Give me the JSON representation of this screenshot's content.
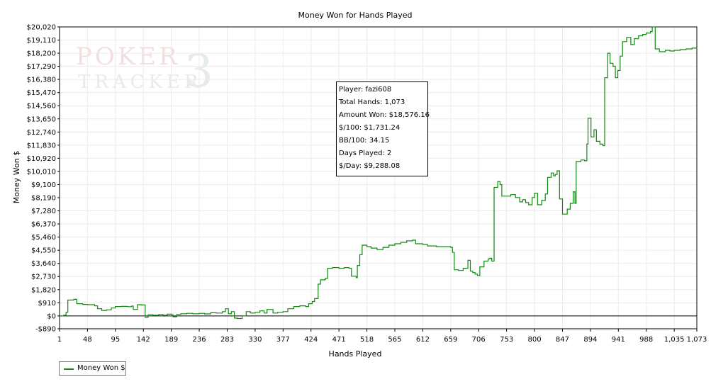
{
  "chart_data": {
    "type": "line",
    "title": "Money Won for Hands Played",
    "xlabel": "Hands Played",
    "ylabel": "Money Won $",
    "xlim": [
      1,
      1073
    ],
    "ylim": [
      -890,
      20020
    ],
    "x_ticks": [
      1,
      48,
      95,
      142,
      189,
      236,
      283,
      330,
      377,
      424,
      471,
      518,
      565,
      612,
      659,
      706,
      753,
      800,
      847,
      894,
      941,
      988,
      1035,
      1073
    ],
    "x_tick_labels": [
      "1",
      "48",
      "95",
      "142",
      "189",
      "236",
      "283",
      "330",
      "377",
      "424",
      "471",
      "518",
      "565",
      "612",
      "659",
      "706",
      "753",
      "800",
      "847",
      "894",
      "941",
      "988",
      "1,035",
      "1,073"
    ],
    "y_ticks": [
      -890,
      0,
      910,
      1820,
      2730,
      3640,
      4550,
      5460,
      6370,
      7280,
      8190,
      9100,
      10010,
      10920,
      11830,
      12740,
      13650,
      14560,
      15470,
      16380,
      17290,
      18200,
      19110,
      20020
    ],
    "y_tick_labels": [
      "-$890",
      "$0",
      "$910",
      "$1,820",
      "$2,730",
      "$3,640",
      "$4,550",
      "$5,460",
      "$6,370",
      "$7,280",
      "$8,190",
      "$9,100",
      "$10,010",
      "$10,920",
      "$11,830",
      "$12,740",
      "$13,650",
      "$14,560",
      "$15,470",
      "$16,380",
      "$17,290",
      "$18,200",
      "$19,110",
      "$20,020"
    ],
    "grid": true,
    "legend_position": "bottom-left",
    "color": "#118811",
    "series": [
      {
        "name": "Money Won $",
        "points": [
          [
            1,
            0
          ],
          [
            8,
            50
          ],
          [
            12,
            250
          ],
          [
            15,
            1100
          ],
          [
            25,
            1150
          ],
          [
            30,
            850
          ],
          [
            40,
            800
          ],
          [
            48,
            780
          ],
          [
            60,
            700
          ],
          [
            65,
            500
          ],
          [
            72,
            380
          ],
          [
            80,
            420
          ],
          [
            88,
            550
          ],
          [
            95,
            650
          ],
          [
            105,
            660
          ],
          [
            115,
            640
          ],
          [
            122,
            680
          ],
          [
            125,
            450
          ],
          [
            132,
            780
          ],
          [
            138,
            760
          ],
          [
            142,
            760
          ],
          [
            145,
            -100
          ],
          [
            150,
            80
          ],
          [
            158,
            50
          ],
          [
            168,
            100
          ],
          [
            175,
            50
          ],
          [
            182,
            120
          ],
          [
            189,
            80
          ],
          [
            192,
            -60
          ],
          [
            198,
            100
          ],
          [
            205,
            150
          ],
          [
            215,
            180
          ],
          [
            225,
            150
          ],
          [
            236,
            180
          ],
          [
            245,
            140
          ],
          [
            255,
            220
          ],
          [
            265,
            200
          ],
          [
            275,
            300
          ],
          [
            280,
            500
          ],
          [
            285,
            150
          ],
          [
            290,
            300
          ],
          [
            295,
            -150
          ],
          [
            300,
            -180
          ],
          [
            308,
            0
          ],
          [
            315,
            300
          ],
          [
            322,
            200
          ],
          [
            330,
            250
          ],
          [
            338,
            350
          ],
          [
            345,
            200
          ],
          [
            350,
            450
          ],
          [
            360,
            200
          ],
          [
            368,
            250
          ],
          [
            377,
            300
          ],
          [
            385,
            500
          ],
          [
            395,
            650
          ],
          [
            405,
            700
          ],
          [
            415,
            650
          ],
          [
            420,
            850
          ],
          [
            426,
            1000
          ],
          [
            430,
            1200
          ],
          [
            436,
            2200
          ],
          [
            440,
            2500
          ],
          [
            448,
            2600
          ],
          [
            452,
            3300
          ],
          [
            460,
            3350
          ],
          [
            471,
            3300
          ],
          [
            480,
            3350
          ],
          [
            488,
            3300
          ],
          [
            492,
            2750
          ],
          [
            500,
            2650
          ],
          [
            502,
            3500
          ],
          [
            506,
            4250
          ],
          [
            510,
            4900
          ],
          [
            518,
            4800
          ],
          [
            525,
            4700
          ],
          [
            535,
            4600
          ],
          [
            545,
            4750
          ],
          [
            555,
            4900
          ],
          [
            565,
            5000
          ],
          [
            575,
            5100
          ],
          [
            585,
            5200
          ],
          [
            595,
            5250
          ],
          [
            600,
            5000
          ],
          [
            612,
            4950
          ],
          [
            620,
            4850
          ],
          [
            635,
            4800
          ],
          [
            650,
            4800
          ],
          [
            659,
            4750
          ],
          [
            662,
            4400
          ],
          [
            665,
            3200
          ],
          [
            672,
            3150
          ],
          [
            680,
            3300
          ],
          [
            688,
            3850
          ],
          [
            692,
            3100
          ],
          [
            696,
            3000
          ],
          [
            700,
            2900
          ],
          [
            704,
            2800
          ],
          [
            708,
            3400
          ],
          [
            715,
            3800
          ],
          [
            722,
            3950
          ],
          [
            725,
            4000
          ],
          [
            728,
            3800
          ],
          [
            732,
            8900
          ],
          [
            738,
            9300
          ],
          [
            742,
            9100
          ],
          [
            745,
            8300
          ],
          [
            752,
            8300
          ],
          [
            760,
            8400
          ],
          [
            768,
            8200
          ],
          [
            775,
            7900
          ],
          [
            780,
            8050
          ],
          [
            785,
            7850
          ],
          [
            790,
            7700
          ],
          [
            796,
            8200
          ],
          [
            800,
            8500
          ],
          [
            805,
            7700
          ],
          [
            812,
            8000
          ],
          [
            818,
            8450
          ],
          [
            822,
            9600
          ],
          [
            828,
            9900
          ],
          [
            832,
            9700
          ],
          [
            835,
            9800
          ],
          [
            838,
            10050
          ],
          [
            842,
            8100
          ],
          [
            847,
            7050
          ],
          [
            855,
            7400
          ],
          [
            860,
            7800
          ],
          [
            865,
            8600
          ],
          [
            868,
            7800
          ],
          [
            870,
            10700
          ],
          [
            878,
            10800
          ],
          [
            884,
            10750
          ],
          [
            888,
            11900
          ],
          [
            890,
            13700
          ],
          [
            895,
            12400
          ],
          [
            900,
            12900
          ],
          [
            904,
            12100
          ],
          [
            910,
            11900
          ],
          [
            915,
            11800
          ],
          [
            918,
            16500
          ],
          [
            923,
            18200
          ],
          [
            927,
            17500
          ],
          [
            932,
            17300
          ],
          [
            936,
            16500
          ],
          [
            940,
            17000
          ],
          [
            944,
            18000
          ],
          [
            948,
            19000
          ],
          [
            955,
            19300
          ],
          [
            962,
            18800
          ],
          [
            968,
            19200
          ],
          [
            975,
            19400
          ],
          [
            982,
            19500
          ],
          [
            988,
            19600
          ],
          [
            995,
            19700
          ],
          [
            998,
            20020
          ],
          [
            1003,
            18500
          ],
          [
            1010,
            18300
          ],
          [
            1020,
            18400
          ],
          [
            1028,
            18350
          ],
          [
            1035,
            18400
          ],
          [
            1045,
            18450
          ],
          [
            1055,
            18500
          ],
          [
            1065,
            18550
          ],
          [
            1073,
            18576.16
          ]
        ]
      }
    ]
  },
  "stats": {
    "player": "Player: fazi608",
    "total_hands": "Total Hands: 1,073",
    "amount_won": "Amount Won: $18,576.16",
    "per100": "$/100: $1,731.24",
    "bb100": "BB/100: 34.15",
    "days_played": "Days Played: 2",
    "per_day": "$/Day: $9,288.08"
  },
  "watermark": {
    "line1": "POKER",
    "line2": "TRACKER",
    "mark": "3"
  }
}
